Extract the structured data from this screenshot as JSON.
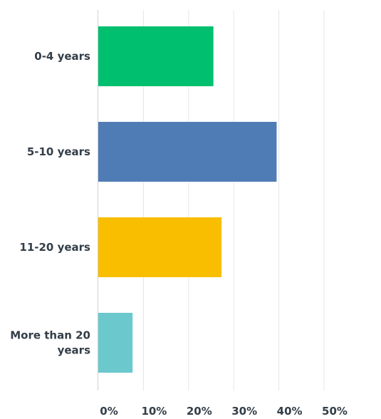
{
  "chart_data": {
    "type": "bar",
    "orientation": "horizontal",
    "categories": [
      "0-4 years",
      "5-10 years",
      "11-20 years",
      "More than 20 years"
    ],
    "category_lines": [
      [
        "0-4 years"
      ],
      [
        "5-10 years"
      ],
      [
        "11-20 years"
      ],
      [
        "More than 20",
        "years"
      ]
    ],
    "values": [
      25.5,
      39.5,
      27.3,
      7.6
    ],
    "colors": [
      "#00bf6f",
      "#507cb6",
      "#f9be00",
      "#6bc8cd"
    ],
    "xlim": [
      0,
      50
    ],
    "xticks": [
      0,
      10,
      20,
      30,
      40,
      50
    ],
    "xtick_labels": [
      "0%",
      "10%",
      "20%",
      "30%",
      "40%",
      "50%"
    ],
    "grid": true,
    "legend": "none",
    "title": "",
    "xlabel": "",
    "ylabel": ""
  }
}
